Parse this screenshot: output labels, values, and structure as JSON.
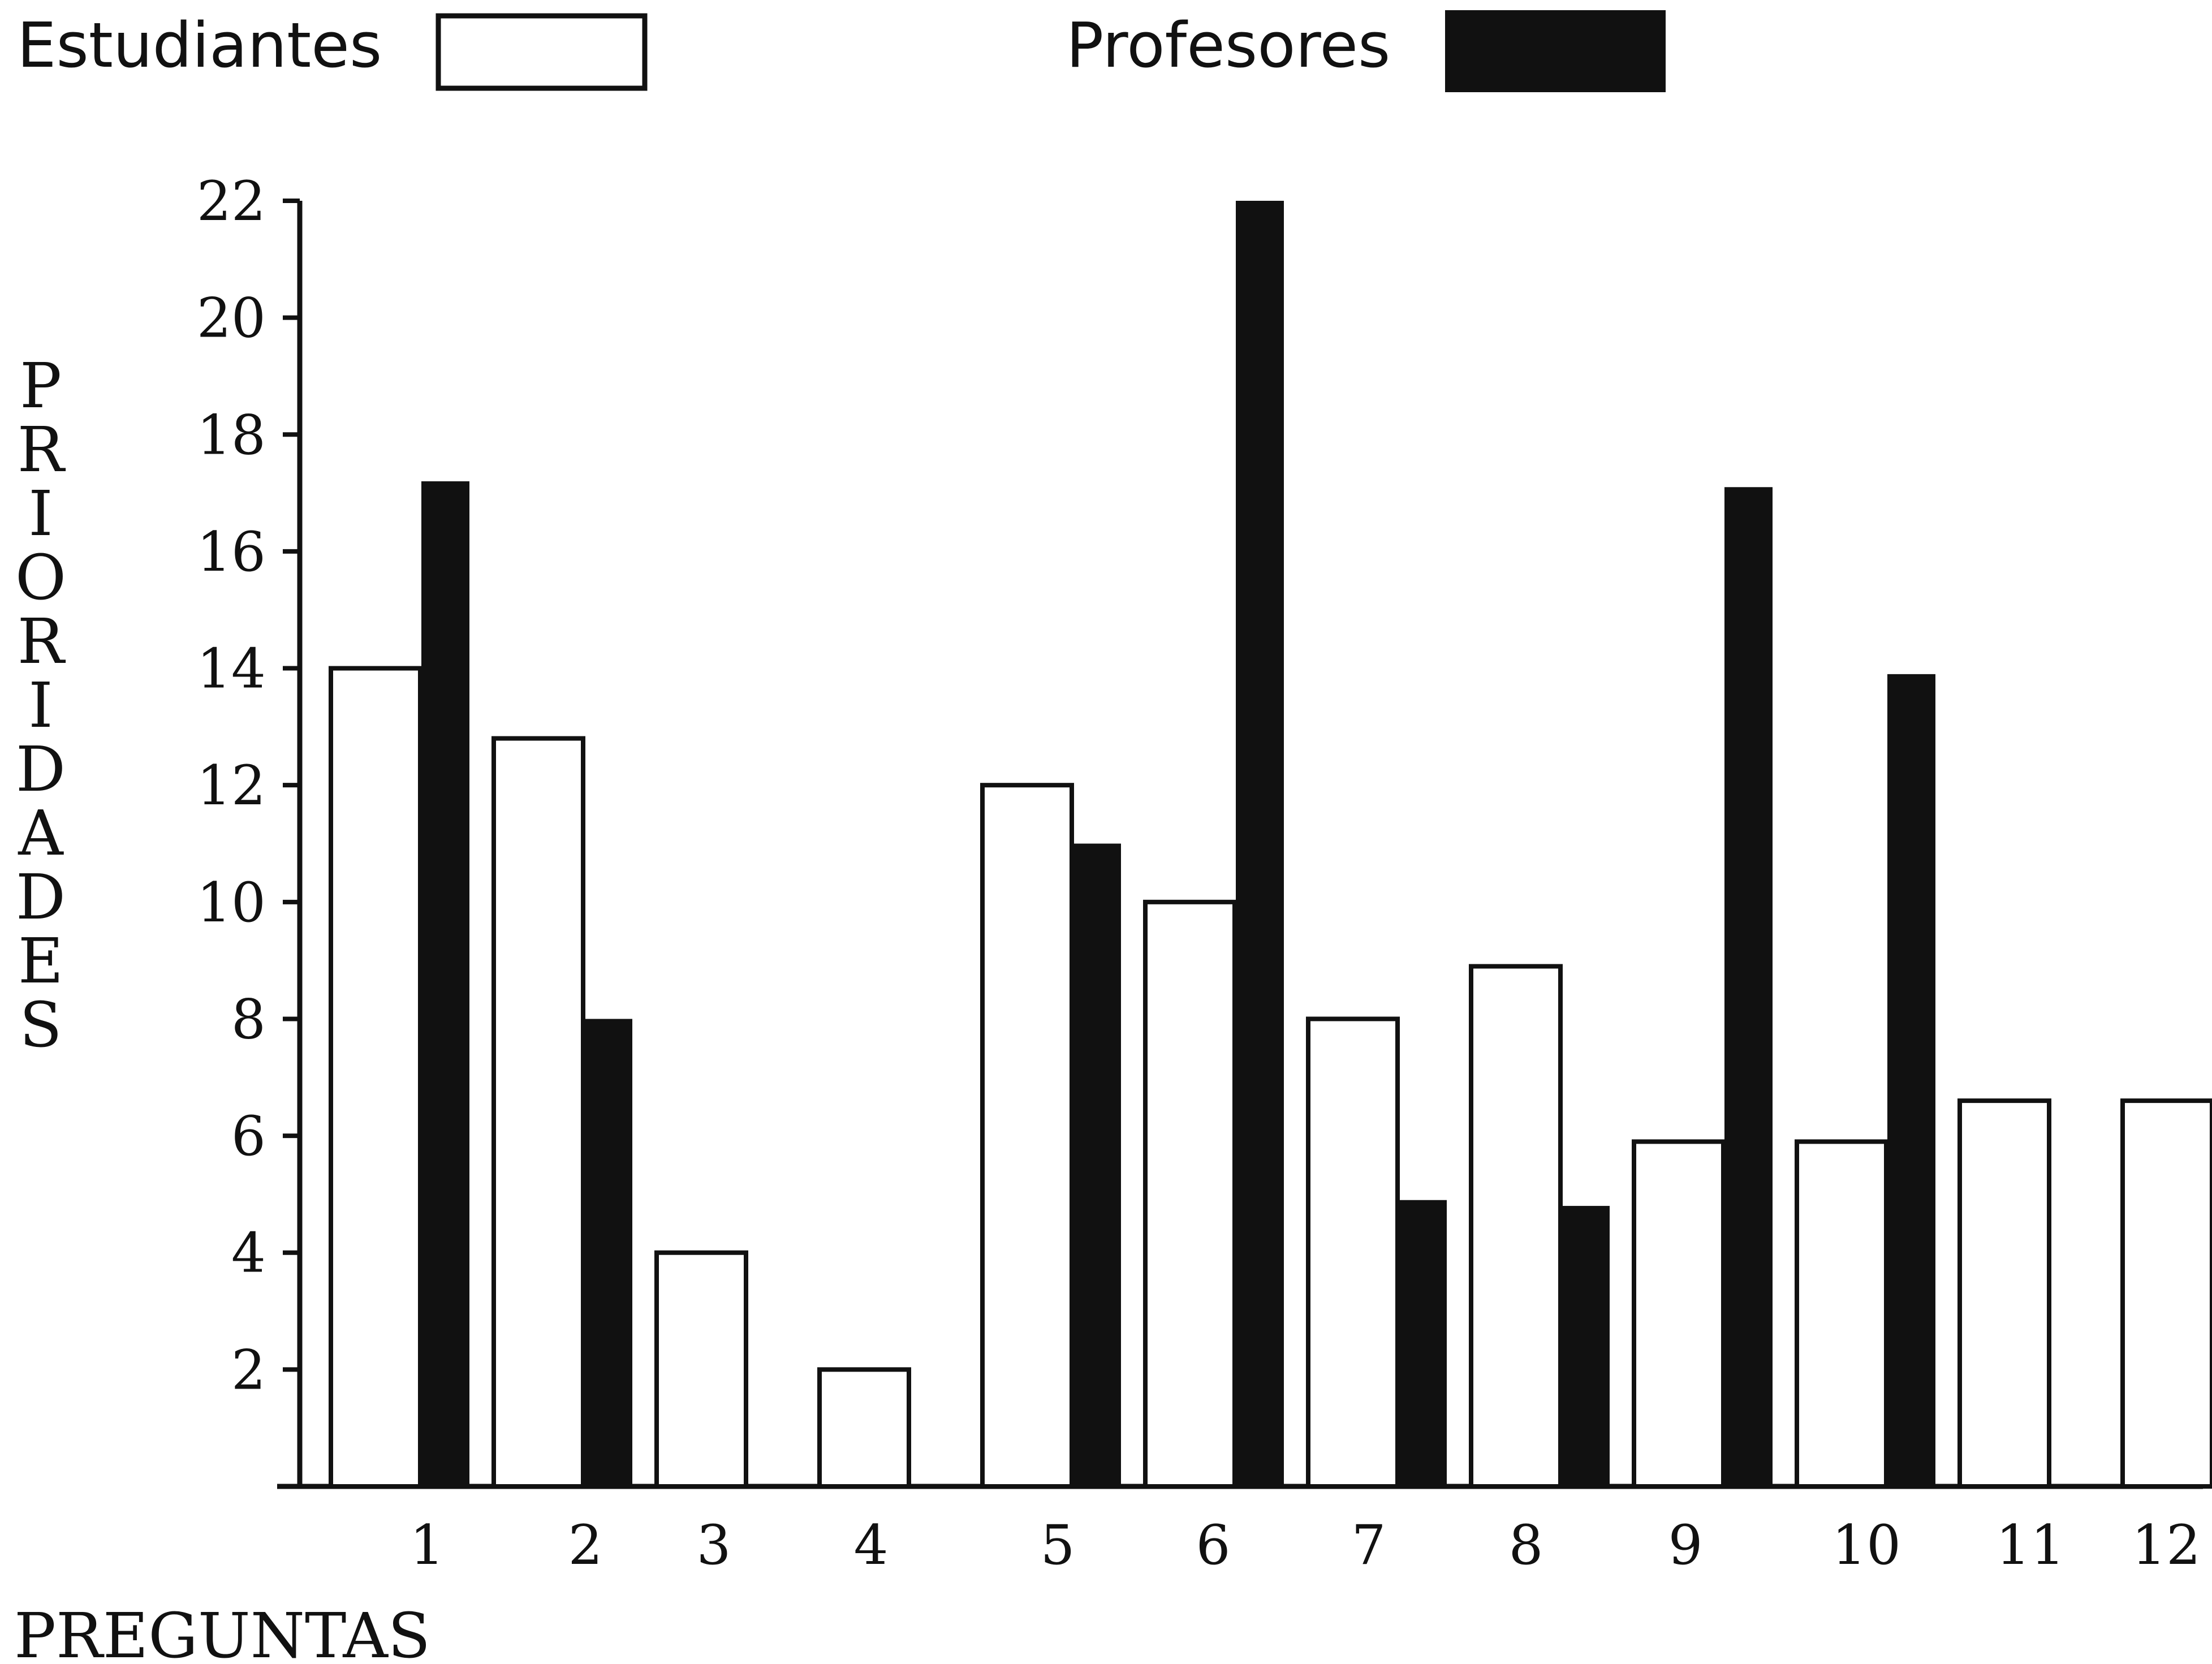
{
  "chart_data": {
    "type": "bar",
    "title": "",
    "xlabel": "PREGUNTAS",
    "ylabel": "PRIORIDADES",
    "ylim": [
      0,
      22
    ],
    "yticks": [
      2,
      4,
      6,
      8,
      10,
      12,
      14,
      16,
      18,
      20,
      22
    ],
    "categories": [
      "1",
      "2",
      "3",
      "4",
      "5",
      "6",
      "7",
      "8",
      "9",
      "10",
      "11",
      "12"
    ],
    "series": [
      {
        "name": "Estudiantes",
        "color": "#ffffff",
        "values": [
          14,
          12.8,
          4,
          2,
          12,
          10,
          8,
          8.9,
          5.9,
          5.9,
          6.6,
          6.6
        ]
      },
      {
        "name": "Profesores",
        "color": "#111111",
        "values": [
          17.2,
          8,
          0,
          0,
          11,
          22,
          4.9,
          4.8,
          17.1,
          13.9,
          0,
          0
        ]
      }
    ],
    "legend": "top",
    "grid": false
  }
}
